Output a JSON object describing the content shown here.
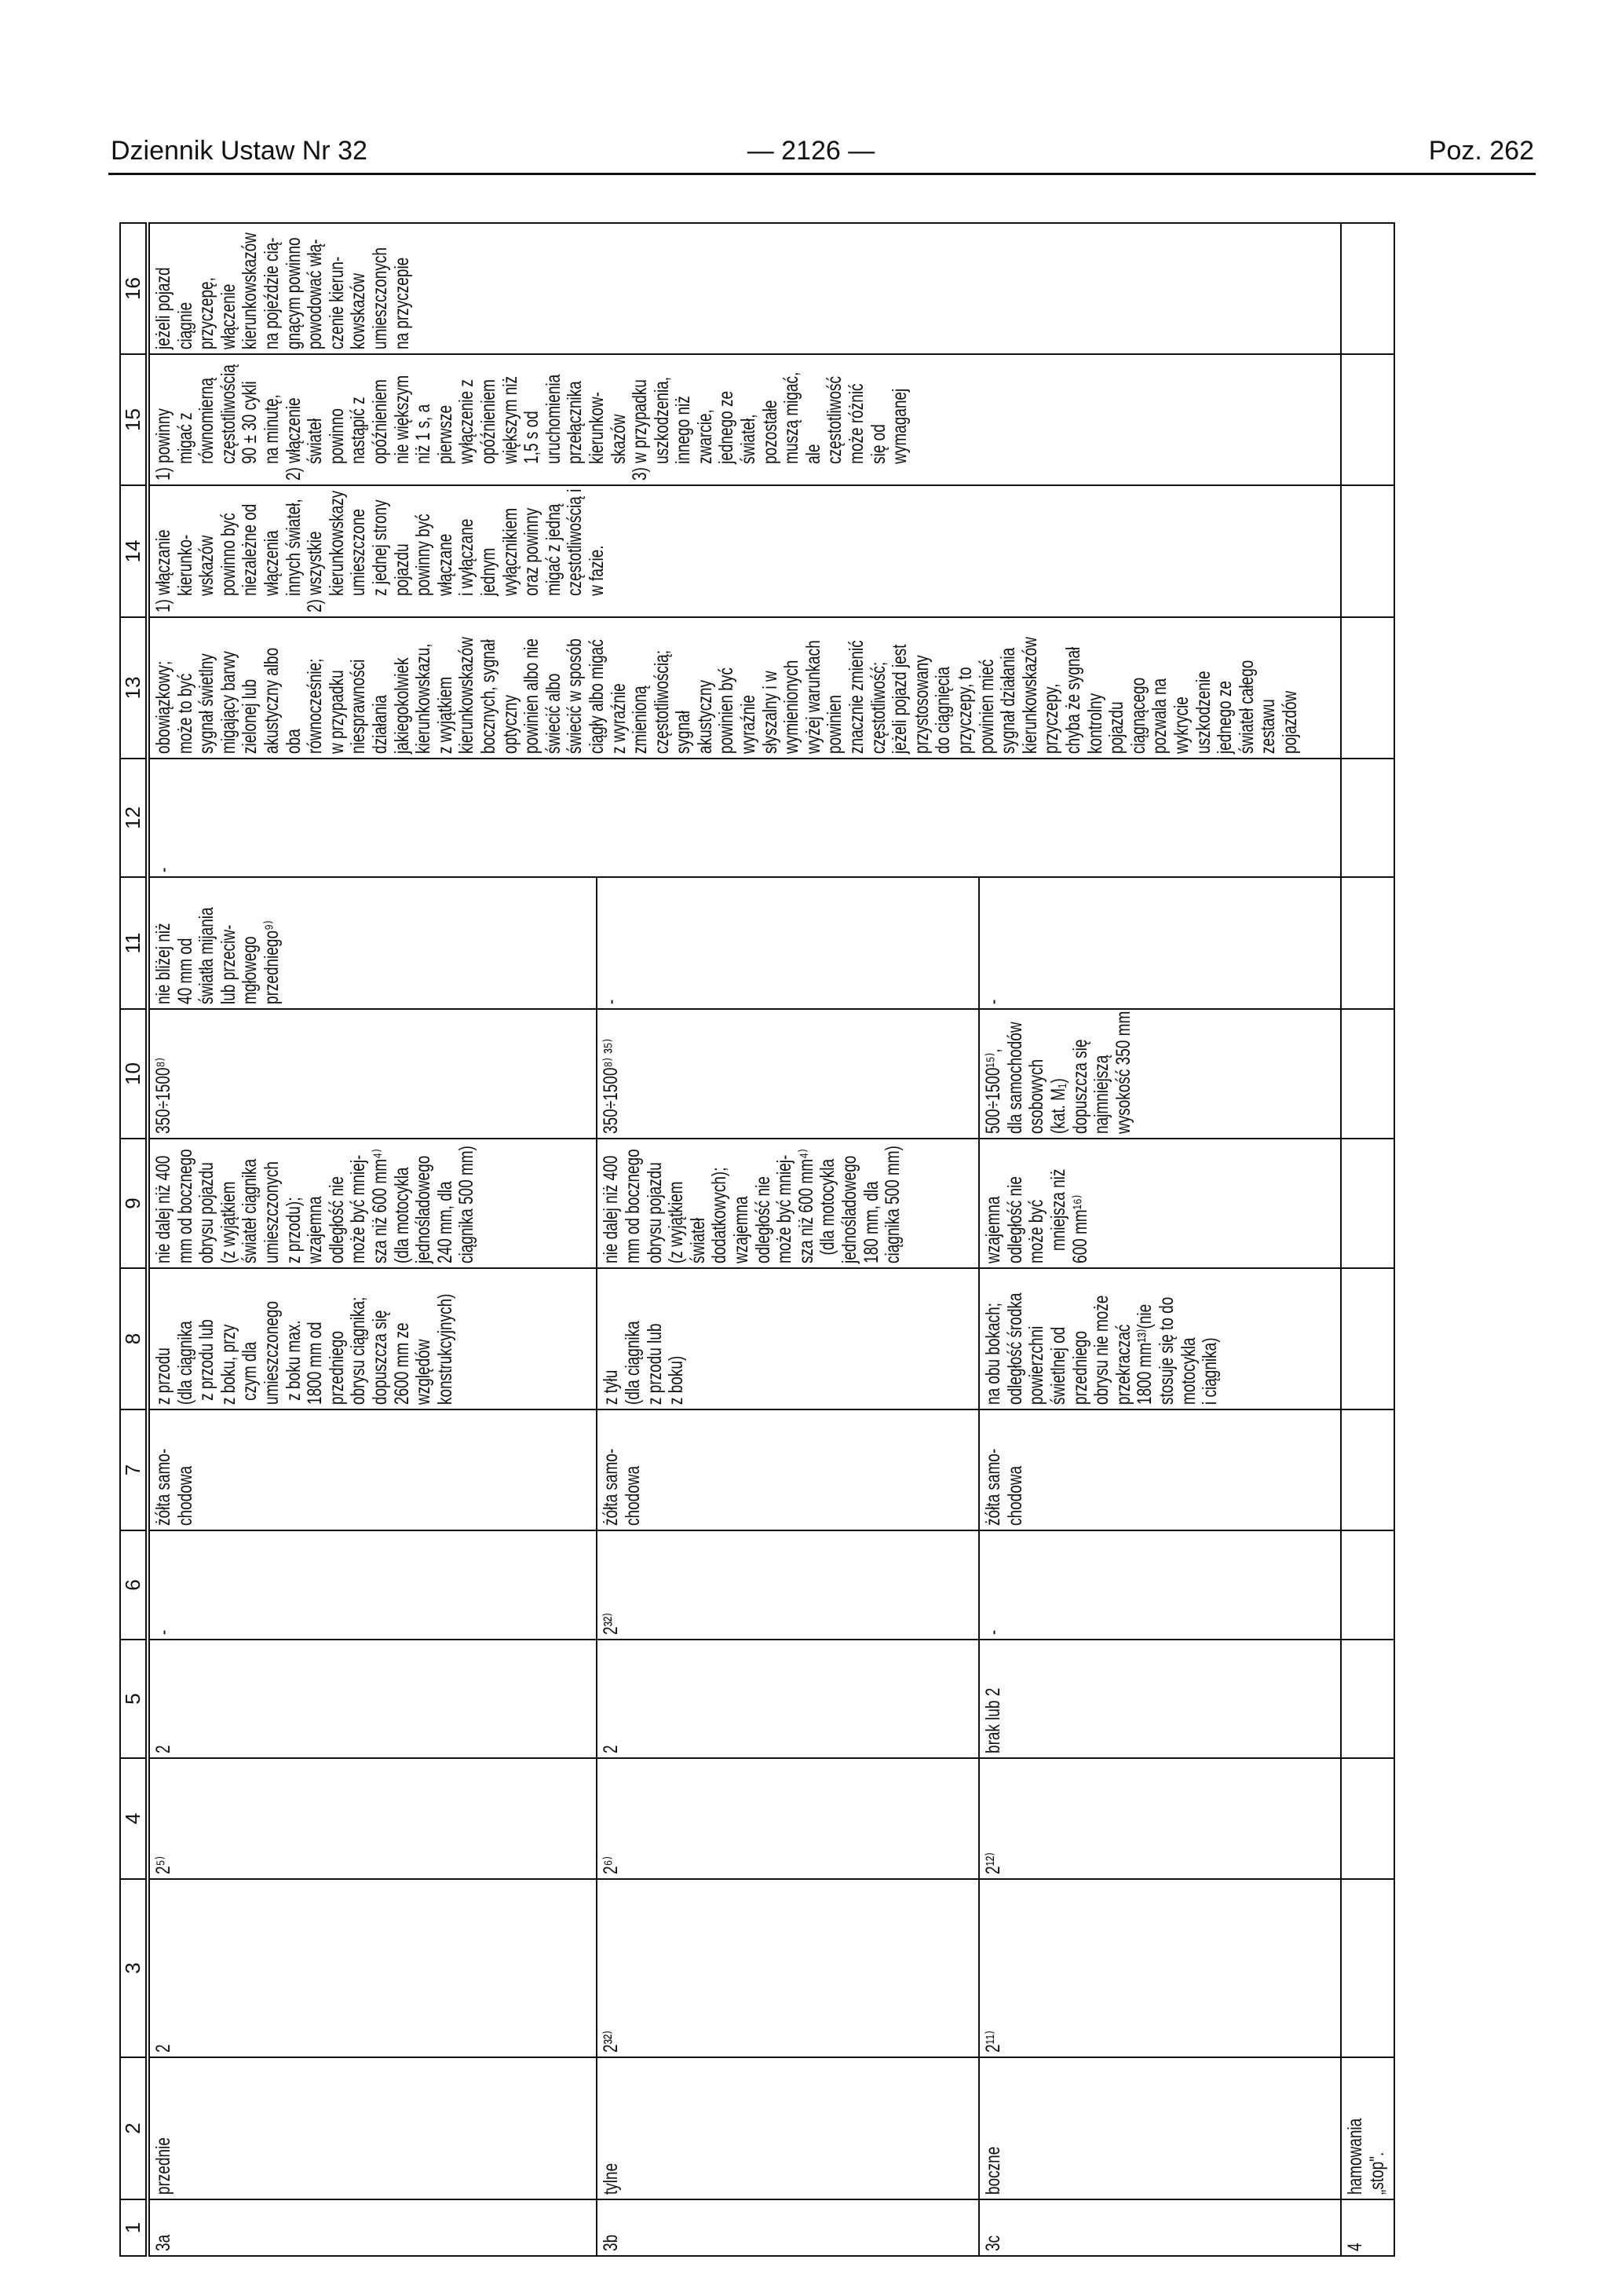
{
  "page_header": {
    "journal": "Dziennik Ustaw Nr 32",
    "page_number": "— 2126 —",
    "position": "Poz. 262"
  },
  "table": {
    "headers": [
      "1",
      "2",
      "3",
      "4",
      "5",
      "6",
      "7",
      "8",
      "9",
      "10",
      "11",
      "12",
      "13",
      "14",
      "15",
      "16"
    ],
    "rows": [
      {
        "id": "3a",
        "cells": [
          "3a",
          "przednie",
          "2",
          "2⁵⁾",
          "2",
          "-",
          "żółta samo-\nchodowa",
          "z przodu\n(dla ciągnika\n z przodu lub\nz boku, przy\n czym dla\numieszczonego\n z boku max.\n1800 mm od\nprzedniego\nobrysu ciągnika;\ndopuszcza się\n2600 mm ze\nwzględów\nkonstrukcyjnych)",
          "nie dalej niż 400\nmm od bocznego\nobrysu pojazdu\n(z wyjątkiem\nświateł ciągnika\numieszczonych\nz przodu);\nwzajemna\nodległość nie\nmoże być mniej-\nsza niż 600 mm⁴⁾\n(dla motocykla\njednośladowego\n240 mm, dla\nciągnika 500 mm)",
          "350÷1500⁸⁾",
          "nie bliżej niż\n40 mm od\nświatła mijania\nlub przeciw-\nmgłowego\nprzedniego⁹⁾",
          "-",
          "obowiązkowy;\nmoże to być\nsygnał świetlny\nmigający barwy\nzielonej lub\nakustyczny albo\noba\nrównocześnie;\nw przypadku\nniesprawności\ndziałania\njakiegokolwiek\nkierunkowskazu,\nz wyjątkiem\nkierunkowskazów\nbocznych, sygnał\noptyczny\npowinien albo nie\nświecić albo\nświecić w sposób\nciągły albo migać\nz wyraźnie\nzmienioną\nczęstotliwością;\nsygnał\nakustyczny\npowinien być\nwyraźnie\nsłyszalny i w\nwymienionych\nwyżej warunkach\npowinien\nznacznie zmienić\nczęstotliwość;\njeżeli pojazd jest\nprzystosowany\ndo ciągnięcia\nprzyczepy, to\npowinien mieć\nsygnał działania\nkierunkowskazów\nprzyczepy,\nchyba że sygnał\nkontrolny\npojazdu\nciągnącego\npozwala na\nwykrycie\nuszkodzenie\njednego ze\nświateł całego\nzestawu\npojazdów",
          "1) włączanie\n    kierunko-\n    wskazów\n    powinno być\n    niezależne od\n    włączenia\n    innych świateł,\n2) wszystkie\n    kierunkowskazy\n    umieszczone\n    z jednej strony\n    pojazdu\n    powinny być\n    włączane\n    i wyłączane\n    jednym\n    wyłącznikiem\n    oraz powinny\n    migać z jedną\n    częstotliwością i\n    w fazie.",
          "1) powinny\n    migać z\n    równomierną\n    częstotliwością\n    90 ± 30 cykli\n    na minutę,\n2) włączenie\n    świateł\n    powinno\n    nastąpić z\n    opóźnieniem\n    nie większym\n    niż 1 s, a\n    pierwsze\n    wyłączenie z\n    opóźnieniem\n    większym niż\n    1,5 s od\n    uruchomienia\n    przełącznika\n    kierunkow-\n    skazów\n3) w przypadku\n    uszkodzenia,\n    innego niż\n    zwarcie,\n    jednego ze\n    świateł,\n    pozostałe\n    muszą migać,\n    ale\n    częstotliwość\n    może różnić\n    się od\n    wymaganej",
          "jeżeli pojazd\nciągnie\nprzyczepę,\nwłączenie\nkierunkowskazów\nna pojeździe cią-\ngnącym powinno\npowodować włą-\nczenie kierun-\nkowskazów\numieszczonych\nna przyczepie"
        ]
      },
      {
        "id": "3b",
        "cells": [
          "3b",
          "tylne",
          "2³²⁾",
          "2⁶⁾",
          "2",
          "2³²⁾",
          "żółta samo-\nchodowa",
          "z tyłu\n(dla ciągnika\nz przodu lub\nz boku)",
          "nie dalej niż 400\nmm od bocznego\nobrysu pojazdu\n(z wyjątkiem\nświateł\ndodatkowych);\nwzajemna\nodległość nie\nmoże być mniej-\nsza niż 600 mm⁴⁾\n  (dla motocykla\njednośladowego\n180 mm, dla\nciągnika 500 mm)",
          "350÷1500⁸⁾ ³⁵⁾",
          "-"
        ]
      },
      {
        "id": "3c",
        "cells": [
          "3c",
          "boczne",
          "2¹¹⁾",
          "2¹²⁾",
          "brak lub 2",
          "-",
          "żółta samo-\nchodowa",
          "na obu bokach;\nodległość środka\npowierzchni\nświetlnej od\nprzedniego\nobrysu nie może\nprzekraczać\n1800 mm¹³⁾(nie\nstosuje się to do\nmotocykla\ni ciągnika)",
          "wzajemna\nodległość nie\nmoże być\n   mniejsza niż\n600 mm¹⁶⁾",
          "500÷1500¹⁵⁾,\ndla samochodów\nosobowych\n(kat. M₁)\ndopuszcza się\nnajmniejszą\nwysokość 350 mm",
          "-"
        ]
      },
      {
        "id": "4",
        "cells": [
          "4",
          "hamowania\n„stop\".",
          "",
          "",
          "",
          "",
          "",
          "",
          "",
          "",
          "",
          "",
          "",
          "",
          "",
          ""
        ]
      }
    ]
  }
}
